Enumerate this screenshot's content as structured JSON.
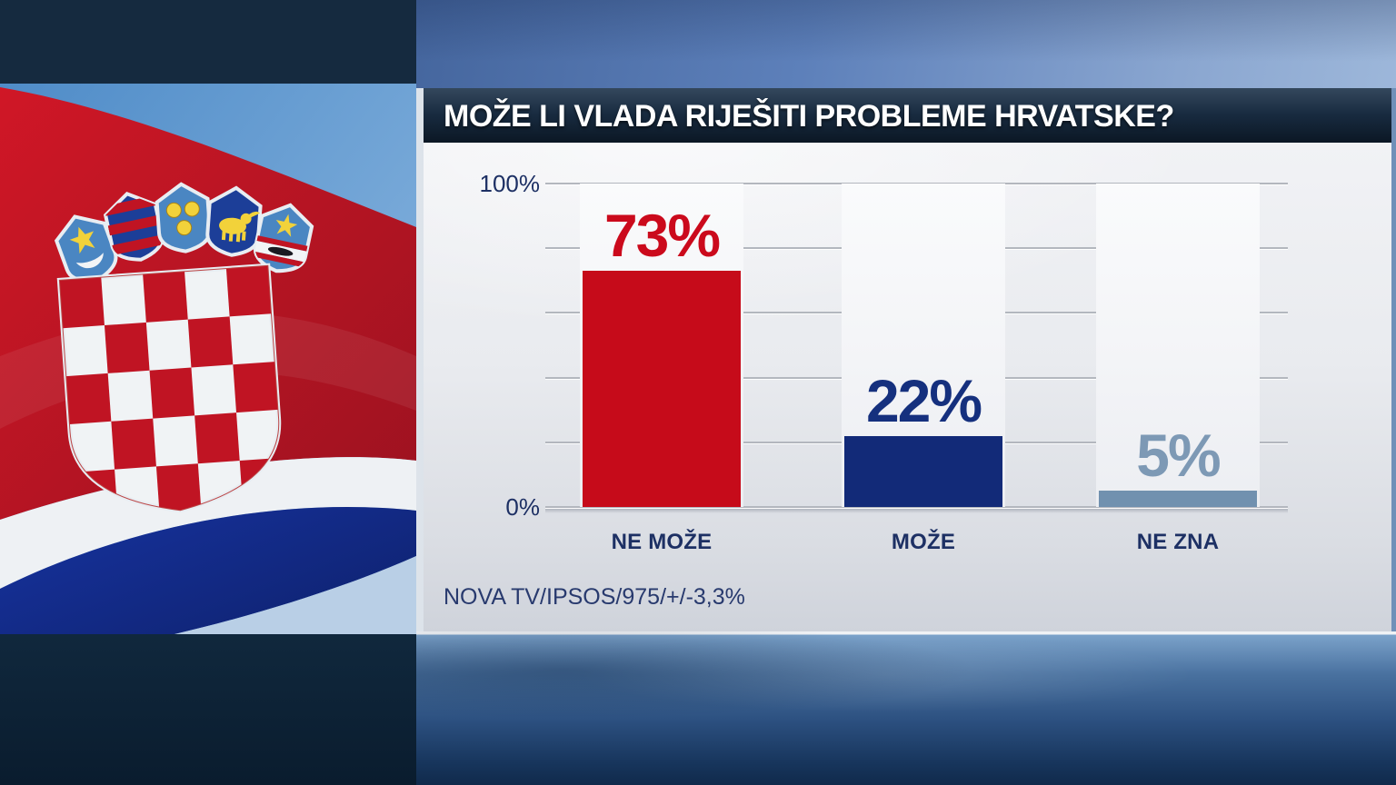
{
  "headline": "MOŽE LI VLADA RIJEŠITI PROBLEME HRVATSKE?",
  "axis": {
    "top_label": "100%",
    "bottom_label": "0%"
  },
  "source_line": "NOVA TV/IPSOS/975/+/-3,3%",
  "flag": {
    "country": "Croatia",
    "description": "waving Croatian flag with coat of arms"
  },
  "chart_data": {
    "type": "bar",
    "title": "MOŽE LI VLADA RIJEŠITI PROBLEME HRVATSKE?",
    "categories": [
      "NE MOŽE",
      "MOŽE",
      "NE ZNA"
    ],
    "values": [
      73,
      22,
      5
    ],
    "value_labels": [
      "73%",
      "22%",
      "5%"
    ],
    "bar_colors": [
      "#c60b1a",
      "#122a78",
      "#7191af"
    ],
    "label_colors": [
      "#cb0a1c",
      "#15307e",
      "#7d99b5"
    ],
    "ylabel": "",
    "xlabel": "",
    "ylim": [
      0,
      100
    ],
    "ytick_step": 20,
    "yticks_labeled": [
      "0%",
      "100%"
    ],
    "grid": true,
    "legend": "none",
    "source": "NOVA TV/IPSOS/975/+/-3,3%"
  }
}
